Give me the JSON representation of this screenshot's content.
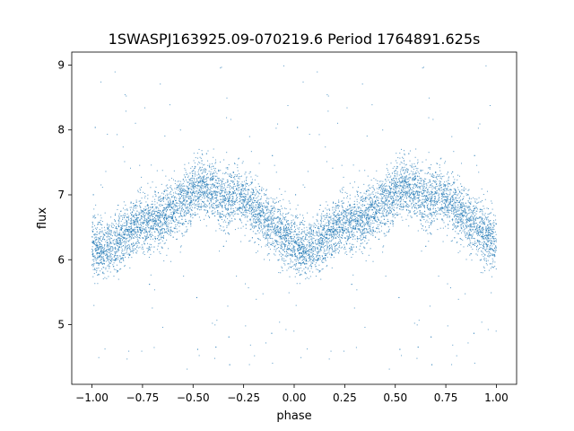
{
  "chart_data": {
    "type": "scatter",
    "title": "1SWASPJ163925.09-070219.6 Period 1764891.625s",
    "xlabel": "phase",
    "ylabel": "flux",
    "xlim": [
      -1.1,
      1.1
    ],
    "ylim": [
      4.08,
      9.2
    ],
    "x_ticks": [
      -1.0,
      -0.75,
      -0.5,
      -0.25,
      0.0,
      0.25,
      0.5,
      0.75,
      1.0
    ],
    "x_tick_labels": [
      "−1.00",
      "−0.75",
      "−0.50",
      "−0.25",
      "0.00",
      "0.25",
      "0.50",
      "0.75",
      "1.00"
    ],
    "y_ticks": [
      5,
      6,
      7,
      8,
      9
    ],
    "y_tick_labels": [
      "5",
      "6",
      "7",
      "8",
      "9"
    ],
    "grid": false,
    "legend": "none",
    "point_color": "#1f77b4",
    "mean_curve": {
      "phase": [
        0.0,
        0.05,
        0.1,
        0.15,
        0.2,
        0.25,
        0.3,
        0.35,
        0.4,
        0.45,
        0.5,
        0.55,
        0.6,
        0.65,
        0.7,
        0.75,
        0.8,
        0.85,
        0.9,
        0.95,
        1.0
      ],
      "flux": [
        6.25,
        6.15,
        6.2,
        6.35,
        6.5,
        6.55,
        6.6,
        6.65,
        6.75,
        6.9,
        7.0,
        7.1,
        7.05,
        6.95,
        7.0,
        6.9,
        6.75,
        6.65,
        6.5,
        6.35,
        6.25
      ]
    },
    "scatter_sigma": 0.22,
    "outlier_range": [
      4.3,
      9.0
    ],
    "points_per_half_period": 4500
  }
}
